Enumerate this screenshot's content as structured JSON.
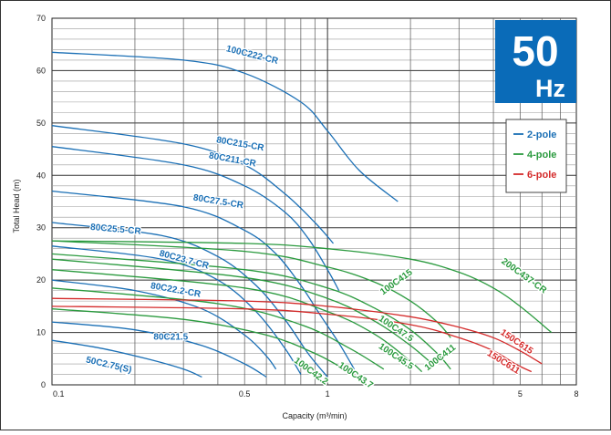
{
  "chart_data": {
    "type": "line",
    "xlabel": "Capacity (m³/min)",
    "ylabel": "Total Head (m)",
    "x_scale": "log",
    "xlim": [
      0.1,
      8
    ],
    "ylim": [
      0,
      70
    ],
    "x_ticks": [
      "0.1",
      "0.5",
      "1",
      "5",
      "8"
    ],
    "y_ticks": [
      "0",
      "10",
      "20",
      "30",
      "40",
      "50",
      "60",
      "70"
    ],
    "badge": {
      "number": "50",
      "unit": "Hz",
      "color": "#0a6bb8"
    },
    "legend": [
      {
        "label": "2-pole",
        "color": "#1a6fb5"
      },
      {
        "label": "4-pole",
        "color": "#2a9a3e"
      },
      {
        "label": "6-pole",
        "color": "#d42a2a"
      }
    ],
    "series": [
      {
        "name": "100C222-CR",
        "pole": "2-pole",
        "x": [
          0.1,
          0.3,
          0.5,
          0.8,
          1.0,
          1.3,
          1.8
        ],
        "y": [
          63.5,
          62,
          59.5,
          54,
          48.5,
          41,
          35
        ]
      },
      {
        "name": "80C215-CR",
        "pole": "2-pole",
        "x": [
          0.1,
          0.3,
          0.5,
          0.7,
          0.9,
          1.05
        ],
        "y": [
          49.5,
          46,
          42,
          36.5,
          31,
          27
        ]
      },
      {
        "name": "80C211-CR",
        "pole": "2-pole",
        "x": [
          0.1,
          0.3,
          0.5,
          0.7,
          0.85,
          1.0,
          1.1
        ],
        "y": [
          45.5,
          42,
          38,
          33,
          28,
          22,
          18
        ]
      },
      {
        "name": "80C27.5-CR",
        "pole": "2-pole",
        "x": [
          0.1,
          0.3,
          0.5,
          0.65,
          0.8,
          0.95,
          1.1,
          1.25
        ],
        "y": [
          37,
          34,
          29.5,
          25,
          19,
          13,
          8,
          3
        ]
      },
      {
        "name": "80C25.5-CR",
        "pole": "2-pole",
        "x": [
          0.1,
          0.25,
          0.4,
          0.55,
          0.7,
          0.85,
          1.0
        ],
        "y": [
          31,
          28.5,
          24.5,
          19,
          12.5,
          6,
          1.5
        ]
      },
      {
        "name": "80C23.7-CR",
        "pole": "2-pole",
        "x": [
          0.1,
          0.25,
          0.4,
          0.55,
          0.7,
          0.8
        ],
        "y": [
          26.5,
          24,
          20,
          14,
          7,
          2
        ]
      },
      {
        "name": "80C22.2-CR",
        "pole": "2-pole",
        "x": [
          0.1,
          0.2,
          0.35,
          0.5,
          0.6,
          0.65
        ],
        "y": [
          20,
          18,
          14.5,
          9.5,
          5.5,
          3
        ]
      },
      {
        "name": "80C21.5",
        "pole": "2-pole",
        "x": [
          0.1,
          0.2,
          0.35,
          0.5,
          0.6
        ],
        "y": [
          12,
          10.5,
          7.5,
          4,
          1.5
        ]
      },
      {
        "name": "50C2.75(S)",
        "pole": "2-pole",
        "x": [
          0.1,
          0.15,
          0.22,
          0.3,
          0.35
        ],
        "y": [
          8.5,
          7,
          5,
          3,
          1.5
        ]
      },
      {
        "name": "200C437-CR",
        "pole": "4-pole",
        "x": [
          0.1,
          0.5,
          1.0,
          2.0,
          3.0,
          4.0,
          5.0,
          6.5
        ],
        "y": [
          27.5,
          27,
          26,
          24,
          21.5,
          18.5,
          15,
          10
        ]
      },
      {
        "name": "100C415",
        "pole": "4-pole",
        "x": [
          0.1,
          0.5,
          1.0,
          1.5,
          2.0,
          2.5,
          2.8
        ],
        "y": [
          27.5,
          25.5,
          22.5,
          19.5,
          16,
          12,
          9
        ]
      },
      {
        "name": "100C411",
        "pole": "4-pole",
        "x": [
          0.1,
          0.5,
          1.0,
          1.5,
          2.0,
          2.5,
          2.8
        ],
        "y": [
          25,
          22,
          18.5,
          14.5,
          10.5,
          6,
          3
        ]
      },
      {
        "name": "100C47.5",
        "pole": "4-pole",
        "x": [
          0.1,
          0.5,
          1.0,
          1.5,
          2.0,
          2.4
        ],
        "y": [
          24,
          20.5,
          16.5,
          12,
          7.5,
          4
        ]
      },
      {
        "name": "100C45.5",
        "pole": "4-pole",
        "x": [
          0.1,
          0.5,
          1.0,
          1.5,
          2.0,
          2.2
        ],
        "y": [
          22,
          18.5,
          14,
          9.5,
          4.5,
          2.5
        ]
      },
      {
        "name": "100C43.7",
        "pole": "4-pole",
        "x": [
          0.1,
          0.4,
          0.8,
          1.2,
          1.6
        ],
        "y": [
          18.5,
          15.5,
          11.5,
          7,
          3
        ]
      },
      {
        "name": "100C42.2",
        "pole": "4-pole",
        "x": [
          0.1,
          0.3,
          0.6,
          0.9,
          1.15
        ],
        "y": [
          14.5,
          12.5,
          9.5,
          6,
          3
        ]
      },
      {
        "name": "150C615",
        "pole": "6-pole",
        "x": [
          0.1,
          0.5,
          1.0,
          2.0,
          3.0,
          4.0,
          5.0,
          6.0
        ],
        "y": [
          16.5,
          16,
          15,
          13,
          11,
          9,
          6.5,
          4
        ]
      },
      {
        "name": "150C611",
        "pole": "6-pole",
        "x": [
          0.1,
          0.5,
          1.0,
          2.0,
          3.0,
          4.0,
          4.8,
          5.5
        ],
        "y": [
          15,
          14.5,
          13.5,
          11.5,
          9,
          6.5,
          4,
          2.5
        ]
      }
    ]
  }
}
